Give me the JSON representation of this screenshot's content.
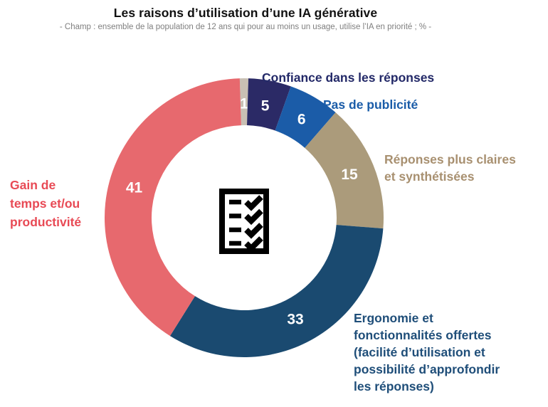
{
  "header": {
    "title": "Les raisons d’utilisation d’une IA générative",
    "subtitle": "- Champ : ensemble de la population de 12 ans qui pour au moins un usage, utilise l’IA en priorité ; % -"
  },
  "chart_data": {
    "type": "pie",
    "subtype": "donut",
    "title": "Les raisons d’utilisation d’une IA générative",
    "subtitle": "- Champ : ensemble de la population de 12 ans qui pour au moins un usage, utilise l’IA en priorité ; % -",
    "unit": "%",
    "start_angle_deg": -1.8,
    "clockwise": true,
    "legend_position": "callouts",
    "center_icon": "checklist-icon",
    "value_label_color": "#FFFFFF",
    "segments": [
      {
        "label": "",
        "value": 1,
        "color": "#C9C0B4",
        "label_color": "#C9C0B4"
      },
      {
        "label": "Confiance dans les réponses",
        "value": 5,
        "color": "#2B2A66",
        "label_color": "#232968"
      },
      {
        "label": "Pas de publicité",
        "value": 6,
        "color": "#1B5CA8",
        "label_color": "#1A5CA8"
      },
      {
        "label": "Réponses plus claires\net synthétisées",
        "value": 15,
        "color": "#AB9B7B",
        "label_color": "#A89070"
      },
      {
        "label": "Ergonomie et\nfonctionnalités offertes\n(facilité d’utilisation et\npossibilité d’approfondir\nles réponses)",
        "value": 33,
        "color": "#1A4A70",
        "label_color": "#1F4E79"
      },
      {
        "label": "Gain de\ntemps et/ou\nproductivité",
        "value": 41,
        "color": "#E7696E",
        "label_color": "#E84A55"
      }
    ]
  }
}
